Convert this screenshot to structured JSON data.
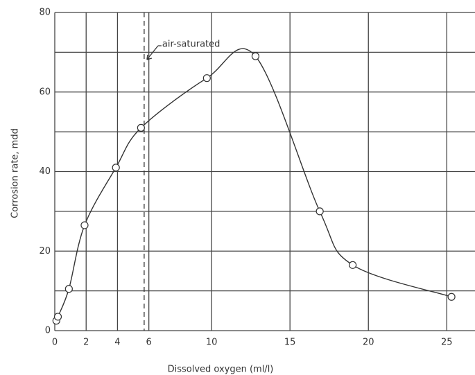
{
  "chart_data": {
    "type": "scatter",
    "xlabel": "Dissolved oxygen (ml/l)",
    "ylabel": "Corrosion rate, mdd",
    "x": [
      0.1,
      0.2,
      0.9,
      1.9,
      3.9,
      5.5,
      9.7,
      12.8,
      16.9,
      19,
      25.3
    ],
    "series": [
      {
        "color": "#333333",
        "values": [
          2.5,
          3.5,
          10.5,
          26.5,
          41,
          51,
          63.5,
          69,
          30,
          16.5,
          8.5
        ]
      }
    ],
    "xlim": [
      0,
      26.8
    ],
    "ylim": [
      0,
      80
    ],
    "xticks": [
      0,
      2,
      4,
      6,
      10,
      15,
      20,
      25
    ],
    "yticks": [
      0,
      20,
      40,
      60,
      80
    ],
    "ygrid": [
      0,
      10,
      20,
      30,
      40,
      50,
      60,
      70,
      80
    ],
    "grid": true,
    "annotation": {
      "text": "air-saturated",
      "x": 5.7
    }
  }
}
